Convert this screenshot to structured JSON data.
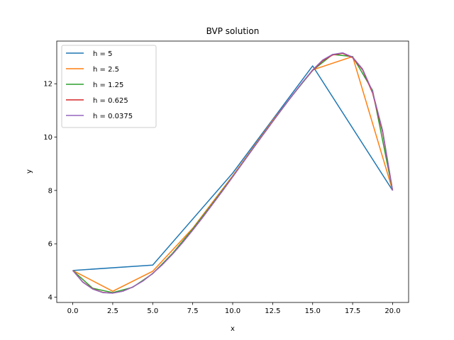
{
  "chart_data": {
    "type": "line",
    "title": "BVP solution",
    "xlabel": "x",
    "ylabel": "y",
    "xlim": [
      -1.0,
      21.0
    ],
    "ylim": [
      3.8,
      13.6
    ],
    "xticks": [
      0.0,
      2.5,
      5.0,
      7.5,
      10.0,
      12.5,
      15.0,
      17.5,
      20.0
    ],
    "xtick_labels": [
      "0.0",
      "2.5",
      "5.0",
      "7.5",
      "10.0",
      "12.5",
      "15.0",
      "17.5",
      "20.0"
    ],
    "yticks": [
      4,
      6,
      8,
      10,
      12
    ],
    "ytick_labels": [
      "4",
      "6",
      "8",
      "10",
      "12"
    ],
    "grid": false,
    "legend_position": "top-left",
    "series": [
      {
        "name": "h = 5",
        "color": "#1f77b4",
        "x": [
          0,
          5,
          10,
          15,
          20
        ],
        "y": [
          5.0,
          5.2,
          8.65,
          12.67,
          8.0
        ]
      },
      {
        "name": "h = 2.5",
        "color": "#ff7f0e",
        "x": [
          0,
          2.5,
          5,
          7.5,
          10,
          12.5,
          15,
          17.5,
          20
        ],
        "y": [
          5.0,
          4.22,
          4.97,
          6.58,
          8.55,
          10.62,
          12.52,
          13.02,
          8.0
        ]
      },
      {
        "name": "h = 1.25",
        "color": "#2ca02c",
        "x": [
          0,
          1.25,
          2.5,
          3.75,
          5,
          6.25,
          7.5,
          8.75,
          10,
          11.25,
          12.5,
          13.75,
          15,
          16.25,
          17.5,
          18.75,
          20
        ],
        "y": [
          5.0,
          4.33,
          4.17,
          4.37,
          4.88,
          5.65,
          6.55,
          7.52,
          8.52,
          9.56,
          10.58,
          11.58,
          12.5,
          13.1,
          13.02,
          11.75,
          8.0
        ]
      },
      {
        "name": "h = 0.625",
        "color": "#d62728",
        "x": [
          0,
          0.625,
          1.25,
          1.875,
          2.5,
          3.125,
          3.75,
          4.375,
          5,
          5.625,
          6.25,
          6.875,
          7.5,
          8.125,
          8.75,
          9.375,
          10,
          10.625,
          11.25,
          11.875,
          12.5,
          13.125,
          13.75,
          14.375,
          15,
          15.625,
          16.25,
          16.875,
          17.5,
          18.125,
          18.75,
          19.375,
          20
        ],
        "y": [
          5.0,
          4.57,
          4.31,
          4.18,
          4.15,
          4.22,
          4.38,
          4.6,
          4.89,
          5.23,
          5.62,
          6.05,
          6.51,
          6.99,
          7.49,
          7.99,
          8.51,
          9.03,
          9.55,
          10.07,
          10.58,
          11.09,
          11.58,
          12.06,
          12.5,
          12.86,
          13.08,
          13.14,
          12.98,
          12.52,
          11.65,
          10.18,
          8.0
        ]
      },
      {
        "name": "h = 0.0375",
        "color": "#9467bd",
        "x": [
          0,
          0.625,
          1.25,
          1.875,
          2.5,
          3.125,
          3.75,
          4.375,
          5,
          5.625,
          6.25,
          6.875,
          7.5,
          8.125,
          8.75,
          9.375,
          10,
          10.625,
          11.25,
          11.875,
          12.5,
          13.125,
          13.75,
          14.375,
          15,
          15.625,
          16.25,
          16.875,
          17.5,
          18.125,
          18.75,
          19.375,
          20
        ],
        "y": [
          5.0,
          4.56,
          4.3,
          4.17,
          4.15,
          4.22,
          4.38,
          4.6,
          4.89,
          5.23,
          5.62,
          6.05,
          6.51,
          6.99,
          7.49,
          7.99,
          8.51,
          9.03,
          9.55,
          10.07,
          10.58,
          11.09,
          11.58,
          12.06,
          12.52,
          12.89,
          13.1,
          13.16,
          13.0,
          12.55,
          11.7,
          10.25,
          8.0
        ]
      }
    ]
  }
}
